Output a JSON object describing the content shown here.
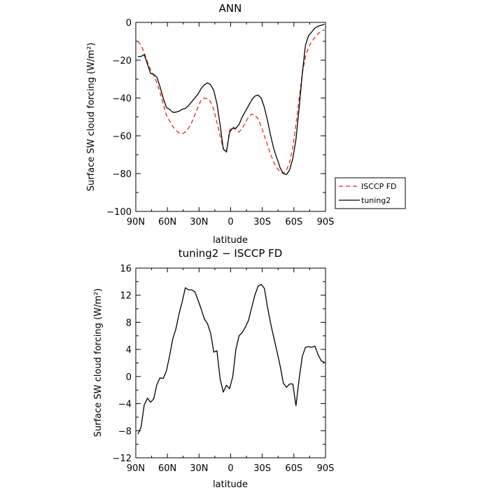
{
  "chart_data": [
    {
      "type": "line",
      "title": "ANN",
      "xlabel": "latitude",
      "ylabel": "Surface SW cloud forcing (W/m²)",
      "xlim": [
        90,
        -90
      ],
      "ylim": [
        -100,
        0
      ],
      "x_ticks": [
        90,
        60,
        30,
        0,
        -30,
        -60,
        -90
      ],
      "x_tick_labels": [
        "90N",
        "60N",
        "30N",
        "0",
        "30S",
        "60S",
        "90S"
      ],
      "y_ticks": [
        0,
        -20,
        -40,
        -60,
        -80,
        -100
      ],
      "y_tick_labels": [
        "0",
        "−20",
        "−40",
        "−60",
        "−80",
        "−100"
      ],
      "grid": false,
      "legend_position": "right",
      "series": [
        {
          "name": "ISCCP FD",
          "color": "#e8281c",
          "dash": "dashed",
          "x": [
            88,
            85,
            82,
            79,
            76,
            73,
            70,
            67,
            64,
            61,
            58,
            55,
            52,
            49,
            46,
            43,
            40,
            37,
            34,
            31,
            28,
            25,
            22,
            19,
            16,
            13,
            10,
            7,
            4,
            1,
            -2,
            -5,
            -8,
            -11,
            -14,
            -17,
            -20,
            -23,
            -26,
            -29,
            -32,
            -35,
            -38,
            -41,
            -44,
            -47,
            -50,
            -53,
            -56,
            -59,
            -62,
            -65,
            -68,
            -71,
            -74,
            -77,
            -80,
            -83,
            -86,
            -89
          ],
          "values": [
            -10,
            -12,
            -16,
            -21,
            -25,
            -28,
            -32,
            -37,
            -43,
            -49,
            -52,
            -55,
            -57,
            -58.5,
            -59,
            -58,
            -56,
            -53,
            -49,
            -45,
            -41,
            -40,
            -40.5,
            -42,
            -46,
            -53,
            -60,
            -67,
            -69,
            -57,
            -55,
            -57,
            -58,
            -56,
            -53,
            -50,
            -48.5,
            -49,
            -51,
            -55,
            -60,
            -65,
            -70,
            -74,
            -77,
            -79,
            -80,
            -78,
            -74,
            -66,
            -54,
            -40,
            -27,
            -18,
            -13,
            -10,
            -8,
            -6,
            -4.5,
            -4
          ]
        },
        {
          "name": "tuning2",
          "color": "#000000",
          "dash": "solid",
          "x": [
            88,
            85,
            82,
            79,
            76,
            73,
            70,
            67,
            64,
            61,
            58,
            55,
            52,
            49,
            46,
            43,
            40,
            37,
            34,
            31,
            28,
            25,
            22,
            19,
            16,
            13,
            10,
            7,
            4,
            1,
            -2,
            -5,
            -8,
            -11,
            -14,
            -17,
            -20,
            -23,
            -26,
            -29,
            -32,
            -35,
            -38,
            -41,
            -44,
            -47,
            -50,
            -53,
            -56,
            -59,
            -62,
            -65,
            -68,
            -71,
            -74,
            -77,
            -80,
            -83,
            -86,
            -89
          ],
          "values": [
            -18,
            -18,
            -17,
            -22,
            -27,
            -27.5,
            -29,
            -34,
            -40,
            -45,
            -46,
            -47.5,
            -47.5,
            -47,
            -46,
            -45.5,
            -44,
            -42,
            -40,
            -38,
            -35,
            -33,
            -32,
            -33,
            -36,
            -43,
            -54,
            -67,
            -68.5,
            -58,
            -56,
            -56,
            -54,
            -50,
            -47,
            -44,
            -41,
            -39,
            -38.5,
            -40,
            -45,
            -52,
            -60,
            -67,
            -72,
            -77,
            -80,
            -80.5,
            -78,
            -72,
            -62,
            -45,
            -27,
            -12,
            -7,
            -5,
            -3,
            -2,
            -1.5,
            -1
          ]
        }
      ]
    },
    {
      "type": "line",
      "title": "tuning2 − ISCCP FD",
      "xlabel": "latitude",
      "ylabel": "Surface SW cloud forcing (W/m²)",
      "xlim": [
        90,
        -90
      ],
      "ylim": [
        -12,
        16
      ],
      "x_ticks": [
        90,
        60,
        30,
        0,
        -30,
        -60,
        -90
      ],
      "x_tick_labels": [
        "90N",
        "60N",
        "30N",
        "0",
        "30S",
        "60S",
        "90S"
      ],
      "y_ticks": [
        16,
        12,
        8,
        4,
        0,
        -4,
        -8,
        -12
      ],
      "y_tick_labels": [
        "16",
        "12",
        "8",
        "4",
        "0",
        "−4",
        "−8",
        "−12"
      ],
      "grid": false,
      "series": [
        {
          "color": "#000000",
          "dash": "solid",
          "x": [
            88,
            85,
            82,
            79,
            76,
            73,
            70,
            67,
            64,
            61,
            58,
            55,
            52,
            49,
            46,
            43,
            40,
            37,
            34,
            31,
            28,
            25,
            22,
            19,
            16,
            13,
            10,
            7,
            4,
            1,
            -2,
            -5,
            -8,
            -11,
            -14,
            -17,
            -20,
            -23,
            -26,
            -29,
            -32,
            -35,
            -38,
            -41,
            -44,
            -47,
            -50,
            -53,
            -56,
            -59,
            -62,
            -65,
            -68,
            -71,
            -74,
            -77,
            -80,
            -83,
            -86,
            -89
          ],
          "values": [
            -8.5,
            -7.5,
            -4.2,
            -3.2,
            -3.8,
            -3.3,
            -1.2,
            -0.2,
            -0.3,
            0.8,
            3,
            5.5,
            7,
            9.2,
            11,
            13.1,
            12.8,
            12.8,
            12.5,
            11.3,
            10,
            8.5,
            7.8,
            6.4,
            3.6,
            3.8,
            -0.3,
            -2.3,
            -1.3,
            -1.8,
            0,
            4,
            6,
            6.5,
            7.3,
            8.3,
            10.2,
            12,
            13.3,
            13.6,
            13,
            10.2,
            7.8,
            5.7,
            3.7,
            1.5,
            -1,
            -1.6,
            -1.1,
            -1.1,
            -4.3,
            -0.3,
            3,
            4.3,
            4.4,
            4.3,
            4.5,
            3.2,
            2.3,
            2.1
          ]
        }
      ]
    }
  ]
}
